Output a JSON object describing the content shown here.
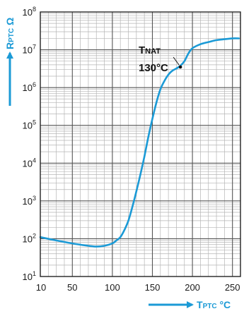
{
  "chart_data": {
    "type": "line",
    "title": "",
    "xlabel": "TPTC °C",
    "ylabel": "RPTC Ω",
    "x_scale": "linear",
    "y_scale": "log",
    "xlim": [
      10,
      260
    ],
    "ylim": [
      10,
      100000000
    ],
    "grid": true,
    "x_ticks": [
      10,
      50,
      100,
      150,
      200,
      250
    ],
    "x_tick_labels": [
      "10",
      "50",
      "100",
      "150",
      "200",
      "250"
    ],
    "y_ticks": [
      10,
      100,
      1000,
      10000,
      100000,
      1000000,
      10000000,
      100000000
    ],
    "y_tick_labels": [
      {
        "base": "10",
        "exp": "1"
      },
      {
        "base": "10",
        "exp": "2"
      },
      {
        "base": "10",
        "exp": "3"
      },
      {
        "base": "10",
        "exp": "4"
      },
      {
        "base": "10",
        "exp": "5"
      },
      {
        "base": "10",
        "exp": "6"
      },
      {
        "base": "10",
        "exp": "7"
      },
      {
        "base": "10",
        "exp": "8"
      }
    ],
    "series": [
      {
        "x": [
          10,
          30,
          50,
          70,
          80,
          90,
          100,
          105,
          110,
          115,
          120,
          125,
          130,
          135,
          140,
          145,
          150,
          155,
          160,
          165,
          170,
          175,
          180,
          185,
          190,
          195,
          200,
          210,
          220,
          230,
          240,
          250,
          258
        ],
        "y": [
          110,
          90,
          75,
          65,
          62,
          65,
          75,
          90,
          110,
          170,
          300,
          700,
          1800,
          5000,
          15000,
          50000,
          150000,
          400000,
          900000,
          1500000,
          2200000,
          2800000,
          3200000,
          3800000,
          5000000,
          8000000,
          11000000,
          14000000,
          16000000,
          18000000,
          19000000,
          20000000,
          20000000
        ]
      }
    ],
    "annotations": [
      {
        "text_main": "T",
        "text_sub": "NAT",
        "value_text": "130°C",
        "x": 185,
        "y": 3500000
      }
    ],
    "colors": {
      "curve": "#1b9ad6",
      "grid": "#b5b5b5",
      "axis_label": "#1b9ad6",
      "frame": "#222222"
    }
  }
}
